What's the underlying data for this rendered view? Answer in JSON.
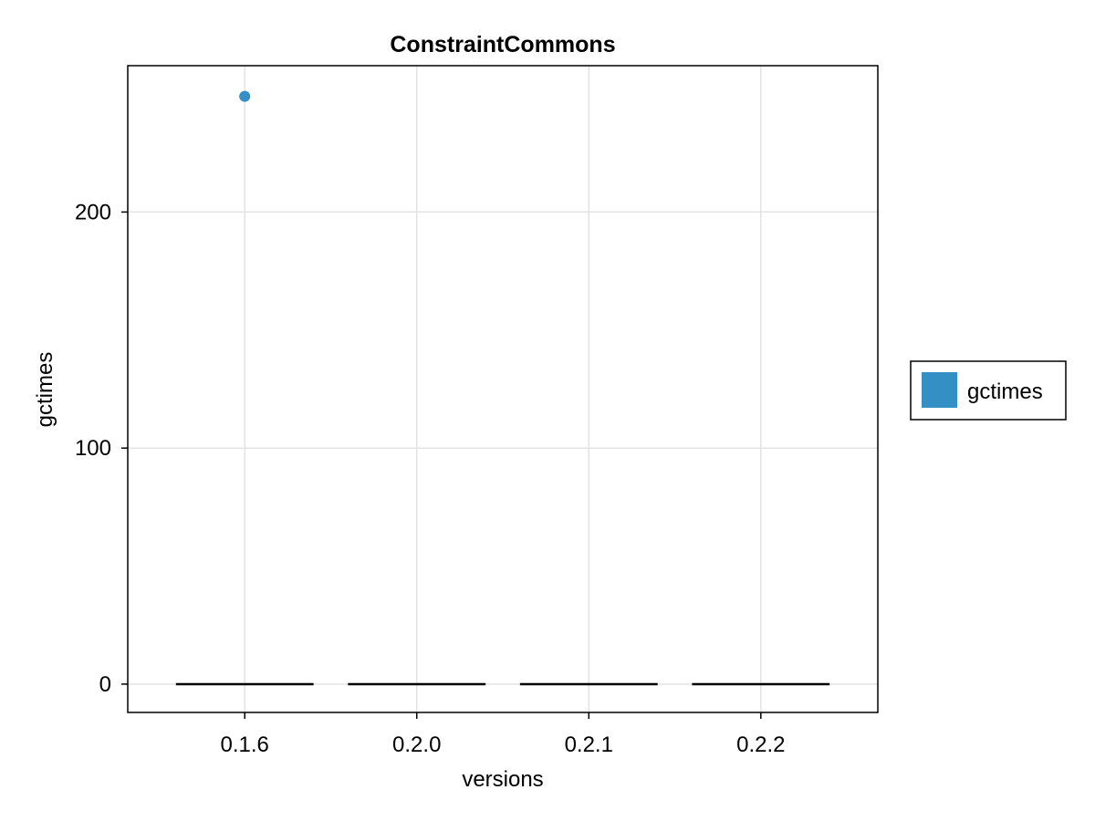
{
  "chart_data": {
    "type": "boxplot",
    "title": "ConstraintCommons",
    "xlabel": "versions",
    "ylabel": "gctimes",
    "categories": [
      "0.1.6",
      "0.2.0",
      "0.2.1",
      "0.2.2"
    ],
    "ylim": [
      -12,
      262
    ],
    "yticks": [
      0,
      100,
      200
    ],
    "grid": true,
    "series": [
      {
        "name": "gctimes",
        "color": "#348fc4",
        "boxes": [
          {
            "category": "0.1.6",
            "min": 0,
            "q1": 0,
            "median": 0,
            "q3": 0,
            "max": 0,
            "outliers": [
              249
            ]
          },
          {
            "category": "0.2.0",
            "min": 0,
            "q1": 0,
            "median": 0,
            "q3": 0,
            "max": 0,
            "outliers": []
          },
          {
            "category": "0.2.1",
            "min": 0,
            "q1": 0,
            "median": 0,
            "q3": 0,
            "max": 0,
            "outliers": []
          },
          {
            "category": "0.2.2",
            "min": 0,
            "q1": 0,
            "median": 0,
            "q3": 0,
            "max": 0,
            "outliers": []
          }
        ]
      }
    ],
    "legend": {
      "position": "right",
      "entries": [
        "gctimes"
      ]
    }
  }
}
